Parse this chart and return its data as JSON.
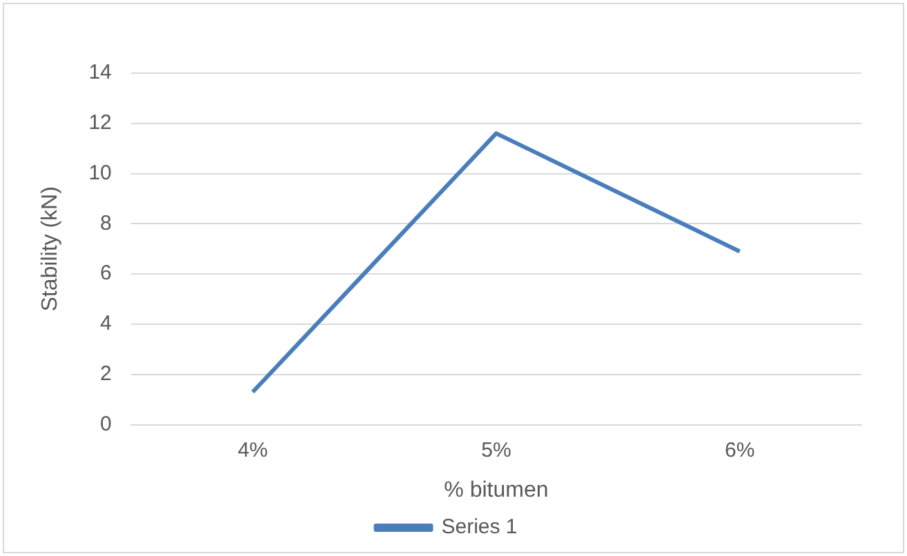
{
  "chart_data": {
    "type": "line",
    "xlabel": "% bitumen",
    "ylabel": "Stability (kN)",
    "categories": [
      "4%",
      "5%",
      "6%"
    ],
    "series": [
      {
        "name": "Series 1",
        "color": "#4a7ebb",
        "values": [
          1.3,
          11.6,
          6.9
        ]
      }
    ],
    "ylim": [
      0,
      14
    ],
    "yticks": [
      0,
      2,
      4,
      6,
      8,
      10,
      12,
      14
    ],
    "grid": "y",
    "legend": "bottom",
    "marker": "none",
    "line_style": "solid"
  }
}
